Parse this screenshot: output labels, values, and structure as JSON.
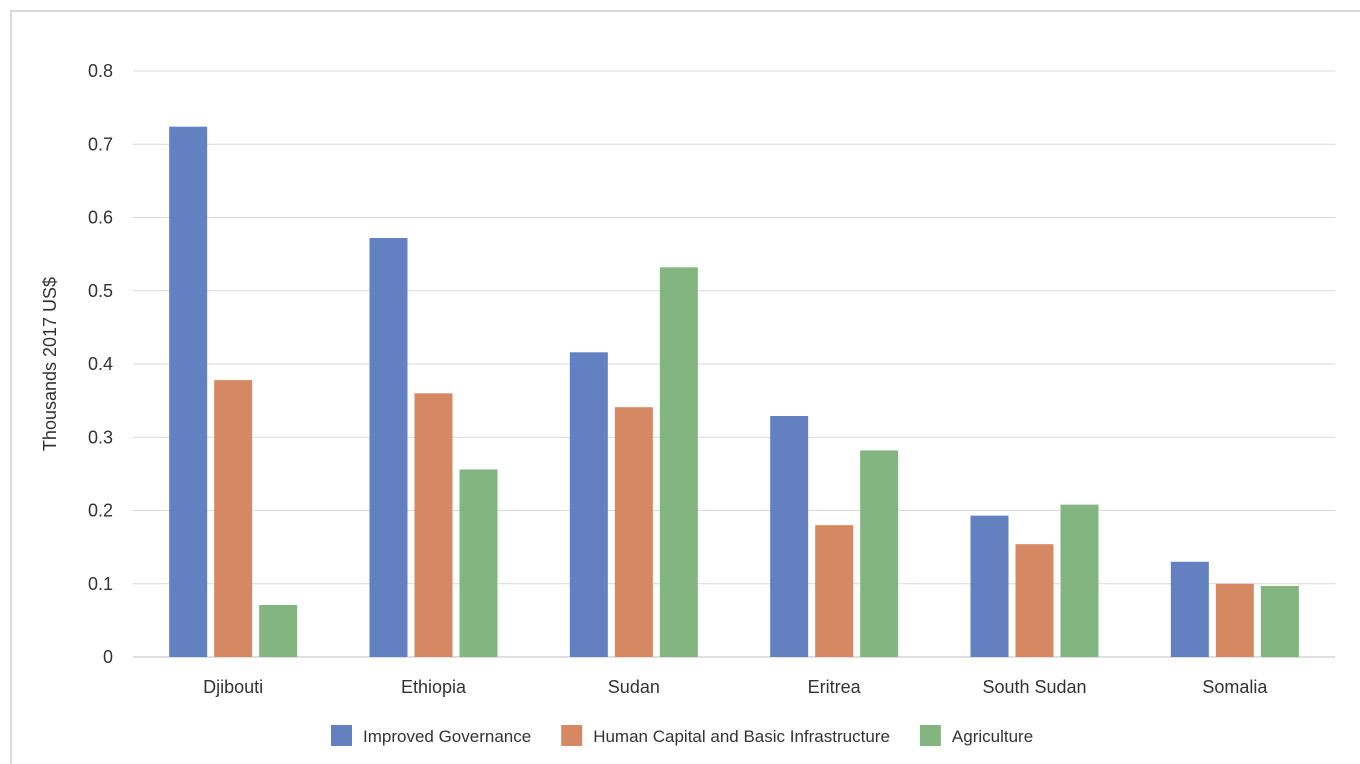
{
  "chart_data": {
    "type": "bar",
    "title": "",
    "xlabel": "",
    "ylabel": "Thousands 2017 US$",
    "ylim": [
      0,
      0.8
    ],
    "yticks": [
      "0",
      "0.1",
      "0.2",
      "0.3",
      "0.4",
      "0.5",
      "0.6",
      "0.7",
      "0.8"
    ],
    "grid": true,
    "legend_position": "bottom",
    "categories": [
      "Djibouti",
      "Ethiopia",
      "Sudan",
      "Eritrea",
      "South Sudan",
      "Somalia"
    ],
    "series": [
      {
        "name": "Improved Governance",
        "color": "#6381c1",
        "values": [
          0.724,
          0.572,
          0.416,
          0.329,
          0.193,
          0.13
        ]
      },
      {
        "name": "Human Capital and Basic Infrastructure",
        "color": "#d68862",
        "values": [
          0.378,
          0.36,
          0.341,
          0.18,
          0.154,
          0.1
        ]
      },
      {
        "name": "Agriculture",
        "color": "#82b57f",
        "values": [
          0.071,
          0.256,
          0.532,
          0.282,
          0.208,
          0.097
        ]
      }
    ]
  }
}
